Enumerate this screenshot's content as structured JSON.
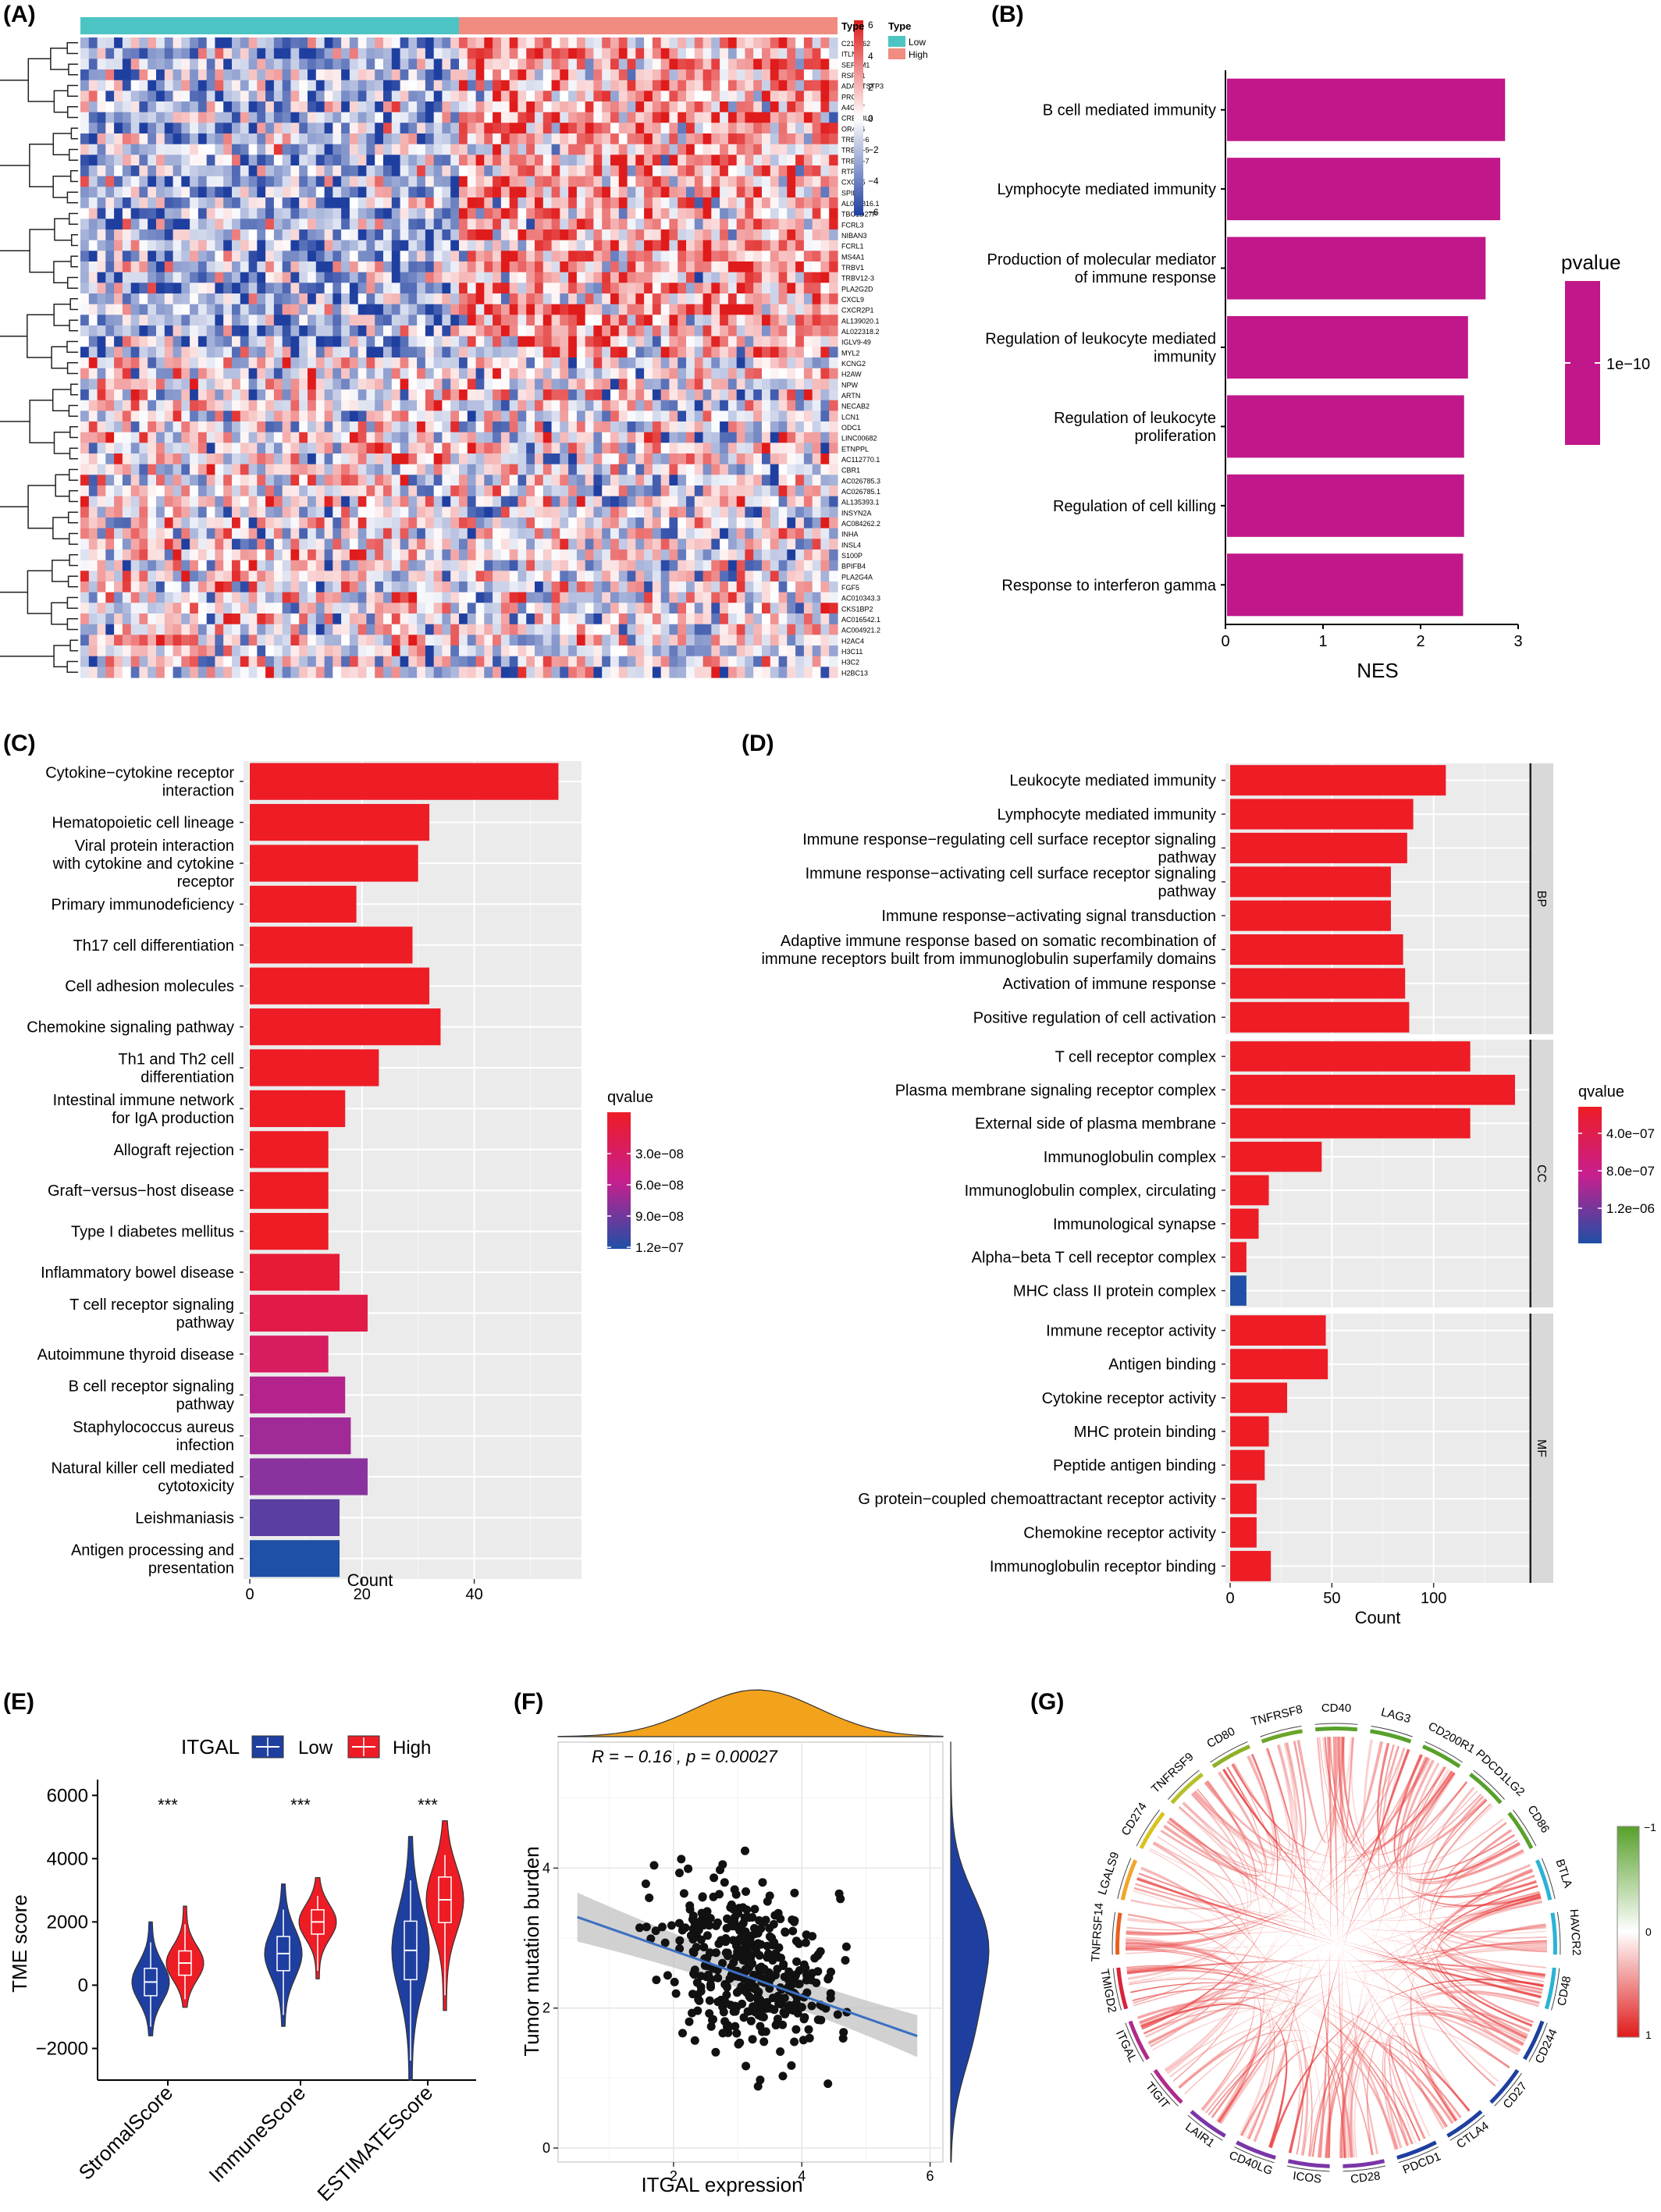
{
  "panels": {
    "a": "(A)",
    "b": "(B)",
    "c": "(C)",
    "d": "(D)",
    "e": "(E)",
    "f": "(F)",
    "g": "(G)"
  },
  "colors": {
    "red": "#ee1c25",
    "blue": "#1f3fa0",
    "magenta": "#c0178a",
    "teal": "#4dc4c4",
    "salmon": "#f08c80",
    "orange": "#f3a21b",
    "green": "#57a02a",
    "grid": "#ebebeb"
  },
  "panel_a": {
    "legend_title": "Type",
    "legend_items": [
      "Low",
      "High"
    ],
    "scale_labels": [
      "6",
      "4",
      "2",
      "0",
      "−2",
      "−4",
      "−6"
    ],
    "genes": [
      "C21orf62",
      "ITLN1",
      "SERTM1",
      "RSPO1",
      "ADAMTSTP3",
      "PRG4",
      "A4GNT",
      "CREB3L3",
      "OR4C6",
      "TRBJ2-6",
      "TRBJ1-5",
      "TRBJ2-7",
      "RTP5",
      "CXCR5",
      "SPIB",
      "AL096816.1",
      "TBC1D27P",
      "FCRL3",
      "NIBAN3",
      "FCRL1",
      "MS4A1",
      "TRBV1",
      "TRBV12-3",
      "PLA2G2D",
      "CXCL9",
      "CXCR2P1",
      "AL139020.1",
      "AL022318.2",
      "IGLV9-49",
      "MYL2",
      "KCNG2",
      "H2AW",
      "NPW",
      "ARTN",
      "NECAB2",
      "LCN1",
      "ODC1",
      "LINC00682",
      "ETNPPL",
      "AC112770.1",
      "CBR1",
      "AC026785.3",
      "AC026785.1",
      "AL135393.1",
      "INSYN2A",
      "AC084262.2",
      "INHA",
      "INSL4",
      "S100P",
      "BPIFB4",
      "PLA2G4A",
      "FGF5",
      "AC010343.3",
      "CKS1BP2",
      "AC016542.1",
      "AC004921.2",
      "H2AC4",
      "H3C11",
      "H3C2",
      "H2BC13"
    ]
  },
  "panel_b": {
    "categories": [
      "B cell mediated immunity",
      "Lymphocyte mediated immunity",
      "Production of molecular mediator of immune response",
      "Regulation of leukocyte mediated immunity",
      "Regulation of leukocyte proliferation",
      "Regulation of cell killing",
      "Response to interferon gamma"
    ],
    "values": [
      2.85,
      2.8,
      2.65,
      2.47,
      2.43,
      2.43,
      2.42
    ],
    "x_ticks": [
      "0",
      "1",
      "2",
      "3"
    ],
    "xlabel": "NES",
    "legend_title": "pvalue",
    "legend_tick": "1e−10"
  },
  "panel_c": {
    "categories": [
      "Cytokine−cytokine receptor interaction",
      "Hematopoietic cell lineage",
      "Viral protein interaction with cytokine and cytokine receptor",
      "Primary immunodeficiency",
      "Th17 cell differentiation",
      "Cell adhesion molecules",
      "Chemokine signaling pathway",
      "Th1 and Th2 cell differentiation",
      "Intestinal immune network for IgA production",
      "Allograft rejection",
      "Graft−versus−host disease",
      "Type I diabetes mellitus",
      "Inflammatory bowel disease",
      "T cell receptor signaling pathway",
      "Autoimmune thyroid disease",
      "B cell receptor signaling pathway",
      "Staphylococcus aureus infection",
      "Natural killer cell mediated cytotoxicity",
      "Leishmaniasis",
      "Antigen processing and presentation"
    ],
    "values": [
      55,
      32,
      30,
      19,
      29,
      32,
      34,
      23,
      17,
      14,
      14,
      14,
      16,
      21,
      14,
      17,
      18,
      21,
      16,
      16
    ],
    "colors": [
      "#ee1c25",
      "#ee1c25",
      "#ee1c25",
      "#ee1c25",
      "#ee1c25",
      "#ee1c25",
      "#ee1c25",
      "#ee1c25",
      "#ee1c25",
      "#ee1c25",
      "#ee1c25",
      "#ee1c25",
      "#e81a35",
      "#e21a48",
      "#d81c60",
      "#b4238c",
      "#a02a98",
      "#8a339f",
      "#5a3fa2",
      "#1f4fa6"
    ],
    "x_ticks": [
      "0",
      "20",
      "40"
    ],
    "xlabel": "Count",
    "legend_title": "qvalue",
    "legend_ticks": [
      "3.0e−08",
      "6.0e−08",
      "9.0e−08",
      "1.2e−07"
    ]
  },
  "panel_d": {
    "groups": [
      {
        "name": "BP",
        "categories": [
          "Leukocyte mediated immunity",
          "Lymphocyte mediated immunity",
          "Immune response−regulating cell surface receptor signaling pathway",
          "Immune response−activating cell surface receptor signaling pathway",
          "Immune response−activating signal transduction",
          "Adaptive immune response based on somatic recombination of immune receptors built from immunoglobulin superfamily domains",
          "Activation of immune response",
          "Positive regulation of cell activation"
        ],
        "values": [
          106,
          90,
          87,
          79,
          79,
          85,
          86,
          88
        ]
      },
      {
        "name": "CC",
        "categories": [
          "T cell receptor complex",
          "Plasma membrane signaling receptor complex",
          "External side of plasma membrane",
          "Immunoglobulin complex",
          "Immunoglobulin complex, circulating",
          "Immunological synapse",
          "Alpha−beta T cell receptor complex",
          "MHC class II protein complex"
        ],
        "values": [
          118,
          140,
          118,
          45,
          19,
          14,
          8,
          8
        ],
        "colors": [
          "#ee1c25",
          "#ee1c25",
          "#ee1c25",
          "#ee1c25",
          "#ee1c25",
          "#ee1c25",
          "#ee1c25",
          "#1f4fa6"
        ]
      },
      {
        "name": "MF",
        "categories": [
          "Immune receptor activity",
          "Antigen binding",
          "Cytokine receptor activity",
          "MHC protein binding",
          "Peptide antigen binding",
          "G protein−coupled chemoattractant receptor activity",
          "Chemokine receptor activity",
          "Immunoglobulin receptor binding"
        ],
        "values": [
          47,
          48,
          28,
          19,
          17,
          13,
          13,
          20
        ]
      }
    ],
    "x_ticks": [
      "0",
      "50",
      "100"
    ],
    "xlabel": "Count",
    "legend_title": "qvalue",
    "legend_ticks": [
      "4.0e−07",
      "8.0e−07",
      "1.2e−06"
    ]
  },
  "panel_e": {
    "legend_title": "ITGAL",
    "legend_items": [
      "Low",
      "High"
    ],
    "ylabel": "TME score",
    "y_ticks": [
      "6000",
      "4000",
      "2000",
      "0",
      "−2000"
    ],
    "categories": [
      "StromalScore",
      "ImmuneScore",
      "ESTIMATEScore"
    ],
    "significance": [
      "***",
      "***",
      "***"
    ],
    "medians_low": [
      100,
      1000,
      1100
    ],
    "medians_high": [
      700,
      2000,
      2700
    ]
  },
  "panel_f": {
    "annotation": "R = − 0.16 , p = 0.00027",
    "xlabel": "ITGAL expression",
    "ylabel": "Tumor mutation burden",
    "x_ticks": [
      "2",
      "4",
      "6"
    ],
    "y_ticks": [
      "0",
      "2",
      "4"
    ],
    "fit_start": [
      0.5,
      3.3
    ],
    "fit_end": [
      5.8,
      1.6
    ]
  },
  "panel_g": {
    "genes": [
      "LAG3",
      "CD200R1",
      "PDCD1LG2",
      "CD86",
      "BTLA",
      "HAVCR2",
      "CD48",
      "CD244",
      "CD27",
      "CTLA4",
      "PDCD1",
      "CD28",
      "ICOS",
      "CD40LG",
      "LAIR1",
      "TIGIT",
      "ITGAL",
      "TMIGD2",
      "TNFRSF14",
      "LGALS9",
      "CD274",
      "TNFRSF9",
      "CD80",
      "TNFRSF8",
      "CD40"
    ],
    "scale_ticks": [
      "−1",
      "0",
      "1"
    ],
    "sector_colors": [
      "#57a02a",
      "#57a02a",
      "#57a02a",
      "#57a02a",
      "#2bb3d6",
      "#2bb3d6",
      "#2bb3d6",
      "#1f3fa0",
      "#1f3fa0",
      "#1f3fa0",
      "#1f3fa0",
      "#7a35a8",
      "#7a35a8",
      "#7a35a8",
      "#7a35a8",
      "#b02a8a",
      "#b02a8a",
      "#d8223a",
      "#e86020",
      "#f1a52a",
      "#d8c21f",
      "#b5c02a",
      "#8fb02a",
      "#6aa52a",
      "#57a02a"
    ]
  }
}
